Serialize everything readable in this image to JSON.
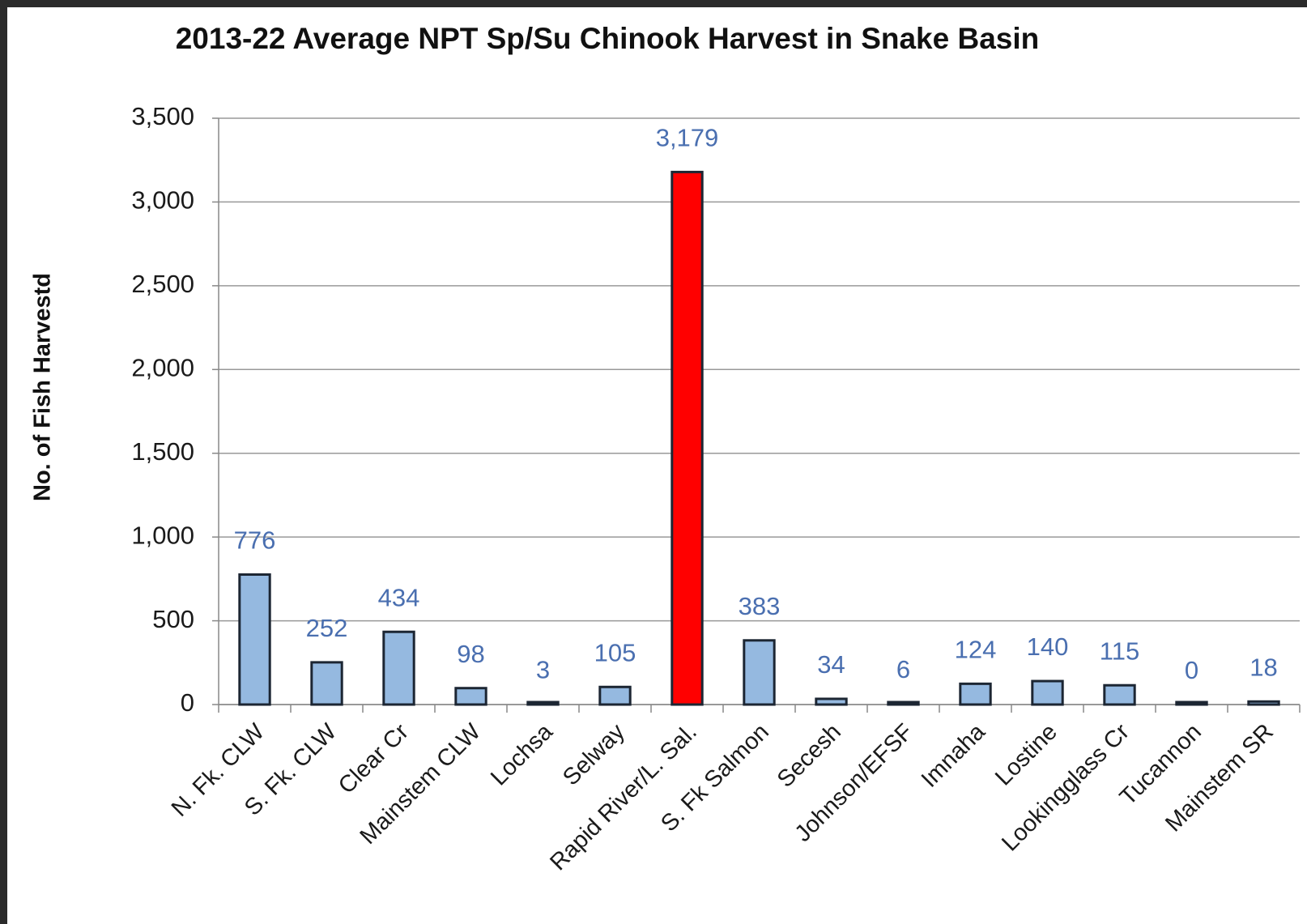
{
  "chart_data": {
    "type": "bar",
    "title": "2013-22 Average NPT Sp/Su Chinook  Harvest in Snake Basin",
    "y_label": "No. of Fish Harvestd",
    "categories": [
      "N. Fk. CLW",
      "S. Fk. CLW",
      "Clear Cr",
      "Mainstem CLW",
      "Lochsa",
      "Selway",
      "Rapid River/L. Sal.",
      "S. Fk Salmon",
      "Secesh",
      "Johnson/EFSF",
      "Imnaha",
      "Lostine",
      "Lookingglass Cr",
      "Tucannon",
      "Mainstem SR"
    ],
    "values": [
      776,
      252,
      434,
      98,
      3,
      105,
      3179,
      383,
      34,
      6,
      124,
      140,
      115,
      0,
      18
    ],
    "value_labels": [
      "776",
      "252",
      "434",
      "98",
      "3",
      "105",
      "3,179",
      "383",
      "34",
      "6",
      "124",
      "140",
      "115",
      "0",
      "18"
    ],
    "colors": [
      "#95b9e0",
      "#95b9e0",
      "#95b9e0",
      "#95b9e0",
      "#95b9e0",
      "#95b9e0",
      "#ff0000",
      "#95b9e0",
      "#95b9e0",
      "#95b9e0",
      "#95b9e0",
      "#95b9e0",
      "#95b9e0",
      "#95b9e0",
      "#95b9e0"
    ],
    "ylim": [
      0,
      3500
    ],
    "yticks": [
      0,
      500,
      {
        "value": 1000,
        "label": "1,000"
      },
      {
        "value": 1500,
        "label": "1,500"
      },
      {
        "value": 2000,
        "label": "2,000"
      },
      {
        "value": 2500,
        "label": "2,500"
      },
      {
        "value": 3000,
        "label": "3,000"
      },
      {
        "value": 3500,
        "label": "3,500"
      }
    ],
    "grid": true
  }
}
